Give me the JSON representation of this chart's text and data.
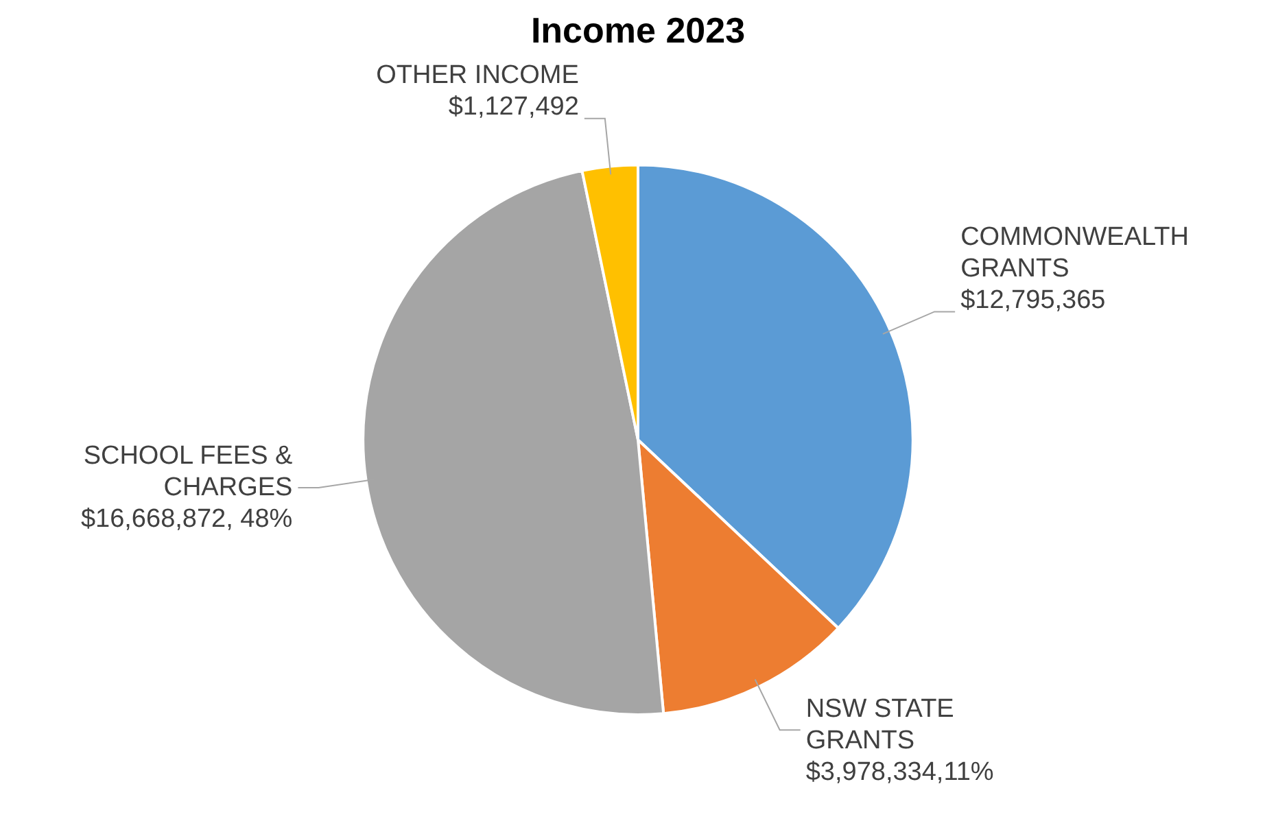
{
  "chart_data": {
    "type": "pie",
    "title": "Income 2023",
    "categories": [
      "COMMONWEALTH GRANTS",
      "NSW STATE GRANTS",
      "SCHOOL FEES & CHARGES",
      "OTHER INCOME"
    ],
    "values": [
      12795365,
      3978334,
      16668872,
      1127492
    ],
    "value_labels": [
      "$12,795,365",
      "$3,978,334,11%",
      "$16,668,872, 48%",
      "$1,127,492"
    ],
    "colors": [
      "#5b9bd5",
      "#ed7d31",
      "#a5a5a5",
      "#ffc000"
    ],
    "legend": false
  }
}
